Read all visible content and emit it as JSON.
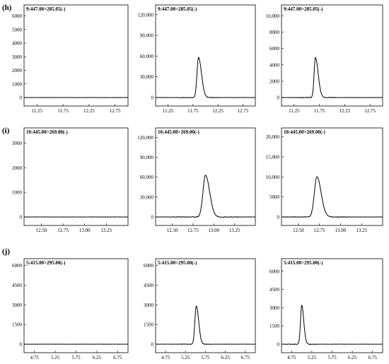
{
  "rows": [
    {
      "label": "(h)",
      "panels": [
        {
          "title": "9:447.00>285.05(-)",
          "x": [
            11.0,
            13.0
          ],
          "xticks": [
            "11.25",
            "11.75",
            "12.25",
            "12.75"
          ],
          "xtickvals": [
            11.25,
            11.75,
            12.25,
            12.75
          ],
          "yticks": [
            "0",
            "1000",
            "2000",
            "3000",
            "4000",
            "5000",
            "6000"
          ],
          "ytickvals": [
            0,
            1000,
            2000,
            3000,
            4000,
            5000,
            6000
          ],
          "ymax": 6600,
          "peak": null
        },
        {
          "title": "9:447.00>285.05(-)",
          "x": [
            11.0,
            13.0
          ],
          "xticks": [
            "11.25",
            "11.75",
            "12.25",
            "12.75"
          ],
          "xtickvals": [
            11.25,
            11.75,
            12.25,
            12.75
          ],
          "yticks": [
            "0",
            "30,000",
            "60,000",
            "90,000",
            "120,000"
          ],
          "ytickvals": [
            0,
            30000,
            60000,
            90000,
            120000
          ],
          "ymax": 130000,
          "peak": {
            "rt": 11.86,
            "height": 58000,
            "rise": 0.06,
            "tail": 0.12
          }
        },
        {
          "title": "9:447.00>285.05(-)",
          "x": [
            11.0,
            13.0
          ],
          "xticks": [
            "11.25",
            "11.75",
            "12.25",
            "12.75"
          ],
          "xtickvals": [
            11.25,
            11.75,
            12.25,
            12.75
          ],
          "yticks": [
            "0",
            "2000",
            "4000",
            "6000",
            "8000",
            "10,000"
          ],
          "ytickvals": [
            0,
            2000,
            4000,
            6000,
            8000,
            10000
          ],
          "ymax": 11000,
          "peak": {
            "rt": 11.67,
            "height": 4900,
            "rise": 0.05,
            "tail": 0.11
          }
        }
      ]
    },
    {
      "label": "(i)",
      "panels": [
        {
          "title": "10:445.00>269.00(-)",
          "x": [
            12.3,
            13.5
          ],
          "xticks": [
            "12.50",
            "12.75",
            "13.00",
            "13.25"
          ],
          "xtickvals": [
            12.5,
            12.75,
            13.0,
            13.25
          ],
          "yticks": [
            "0",
            "1000",
            "2000",
            "3000"
          ],
          "ytickvals": [
            0,
            1000,
            2000,
            3000
          ],
          "ymax": 3500,
          "peak": null
        },
        {
          "title": "10:445.00>269.00(-)",
          "x": [
            12.3,
            13.5
          ],
          "xticks": [
            "12.50",
            "12.75",
            "13.00",
            "13.25"
          ],
          "xtickvals": [
            12.5,
            12.75,
            13.0,
            13.25
          ],
          "yticks": [
            "0",
            "30,000",
            "60,000",
            "90,000",
            "120,000"
          ],
          "ytickvals": [
            0,
            30000,
            60000,
            90000,
            120000
          ],
          "ymax": 130000,
          "peak": {
            "rt": 12.9,
            "height": 63000,
            "rise": 0.06,
            "tail": 0.1
          }
        },
        {
          "title": "10:445.00>269.00(-)",
          "x": [
            12.3,
            13.5
          ],
          "xticks": [
            "12.50",
            "12.75",
            "13.00",
            "13.25"
          ],
          "xtickvals": [
            12.5,
            12.75,
            13.0,
            13.25
          ],
          "yticks": [
            "0",
            "5000",
            "10,000",
            "15,000",
            "20,000"
          ],
          "ytickvals": [
            0,
            5000,
            10000,
            15000,
            20000
          ],
          "ymax": 21500,
          "peak": {
            "rt": 12.72,
            "height": 10000,
            "rise": 0.06,
            "tail": 0.1
          }
        }
      ]
    },
    {
      "label": "(j)",
      "panels": [
        {
          "title": "5:415.00>295.00(-)",
          "x": [
            4.5,
            7.0
          ],
          "xticks": [
            "4.75",
            "5.25",
            "5.75",
            "6.25",
            "6.75"
          ],
          "xtickvals": [
            4.75,
            5.25,
            5.75,
            6.25,
            6.75
          ],
          "yticks": [
            "0",
            "1500",
            "3000",
            "4500",
            "6000"
          ],
          "ytickvals": [
            0,
            1500,
            3000,
            4500,
            6000
          ],
          "ymax": 6300,
          "peak": null
        },
        {
          "title": "5:415.00>295.00(-)",
          "x": [
            4.5,
            7.0
          ],
          "xticks": [
            "4.75",
            "5.25",
            "5.75",
            "6.25",
            "6.75"
          ],
          "xtickvals": [
            4.75,
            5.25,
            5.75,
            6.25,
            6.75
          ],
          "yticks": [
            "0",
            "1500",
            "3000",
            "4500",
            "6000"
          ],
          "ytickvals": [
            0,
            1500,
            3000,
            4500,
            6000
          ],
          "ymax": 6300,
          "peak": {
            "rt": 5.52,
            "height": 2900,
            "rise": 0.07,
            "tail": 0.12
          }
        },
        {
          "title": "5:415.00>295.00(-)",
          "x": [
            4.5,
            7.0
          ],
          "xticks": [
            "4.75",
            "5.25",
            "5.75",
            "6.25",
            "6.75"
          ],
          "xtickvals": [
            4.75,
            5.25,
            5.75,
            6.25,
            6.75
          ],
          "yticks": [
            "0",
            "1500",
            "3000",
            "4500",
            "6000"
          ],
          "ytickvals": [
            0,
            1500,
            3000,
            4500,
            6000
          ],
          "ymax": 6800,
          "peak": {
            "rt": 5.0,
            "height": 3200,
            "rise": 0.06,
            "tail": 0.1
          }
        }
      ]
    }
  ],
  "chart_data": {
    "type": "line",
    "description_free": true,
    "panels": [
      {
        "row": "(h)",
        "col": 1,
        "transition": "9:447.00>285.05(-)",
        "series": [
          {
            "x": [
              11.0,
              13.0
            ],
            "y": [
              0,
              0
            ]
          }
        ]
      },
      {
        "row": "(h)",
        "col": 2,
        "transition": "9:447.00>285.05(-)",
        "peaks": [
          {
            "x": 11.86,
            "y": 58000
          }
        ]
      },
      {
        "row": "(h)",
        "col": 3,
        "transition": "9:447.00>285.05(-)",
        "peaks": [
          {
            "x": 11.67,
            "y": 4900
          }
        ]
      },
      {
        "row": "(i)",
        "col": 1,
        "transition": "10:445.00>269.00(-)",
        "series": [
          {
            "x": [
              12.3,
              13.5
            ],
            "y": [
              0,
              0
            ]
          }
        ]
      },
      {
        "row": "(i)",
        "col": 2,
        "transition": "10:445.00>269.00(-)",
        "peaks": [
          {
            "x": 12.9,
            "y": 63000
          }
        ]
      },
      {
        "row": "(i)",
        "col": 3,
        "transition": "10:445.00>269.00(-)",
        "peaks": [
          {
            "x": 12.72,
            "y": 10000
          }
        ]
      },
      {
        "row": "(j)",
        "col": 1,
        "transition": "5:415.00>295.00(-)",
        "series": [
          {
            "x": [
              4.5,
              7.0
            ],
            "y": [
              0,
              0
            ]
          }
        ]
      },
      {
        "row": "(j)",
        "col": 2,
        "transition": "5:415.00>295.00(-)",
        "peaks": [
          {
            "x": 5.52,
            "y": 2900
          }
        ]
      },
      {
        "row": "(j)",
        "col": 3,
        "transition": "5:415.00>295.00(-)",
        "peaks": [
          {
            "x": 5.0,
            "y": 3200
          }
        ]
      }
    ]
  }
}
